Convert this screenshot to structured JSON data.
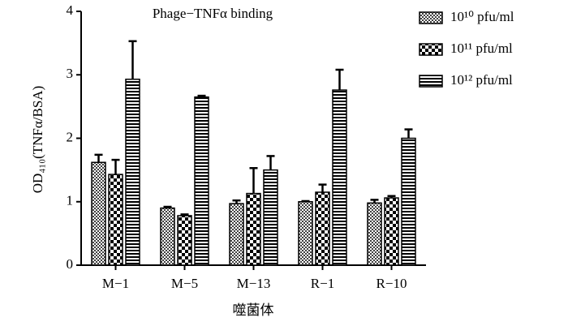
{
  "chart_data": {
    "type": "bar",
    "title": "Phage−TNFα binding",
    "x_label": "噬菌体",
    "y_label": "OD₄₁₀(TNFα/BSA)",
    "categories": [
      "M−1",
      "M−5",
      "M−13",
      "R−1",
      "R−10"
    ],
    "series": [
      {
        "name": "10¹⁰ pfu/ml",
        "color": "#000000",
        "pattern": "checker-fine",
        "values": [
          1.62,
          0.9,
          0.97,
          1.0,
          0.98
        ],
        "errors": [
          0.12,
          0.02,
          0.05,
          0.01,
          0.05
        ]
      },
      {
        "name": "10¹¹ pfu/ml",
        "color": "#000000",
        "pattern": "checker",
        "values": [
          1.43,
          0.78,
          1.13,
          1.15,
          1.06
        ],
        "errors": [
          0.23,
          0.02,
          0.4,
          0.12,
          0.03
        ]
      },
      {
        "name": "10¹² pfu/ml",
        "color": "#000000",
        "pattern": "hstripes",
        "values": [
          2.93,
          2.65,
          1.5,
          2.76,
          2.0
        ],
        "errors": [
          0.6,
          0.02,
          0.22,
          0.32,
          0.14
        ]
      }
    ],
    "ylim": [
      0,
      4
    ],
    "yticks": [
      0,
      1,
      2,
      3,
      4
    ],
    "legend": "upper-right"
  }
}
